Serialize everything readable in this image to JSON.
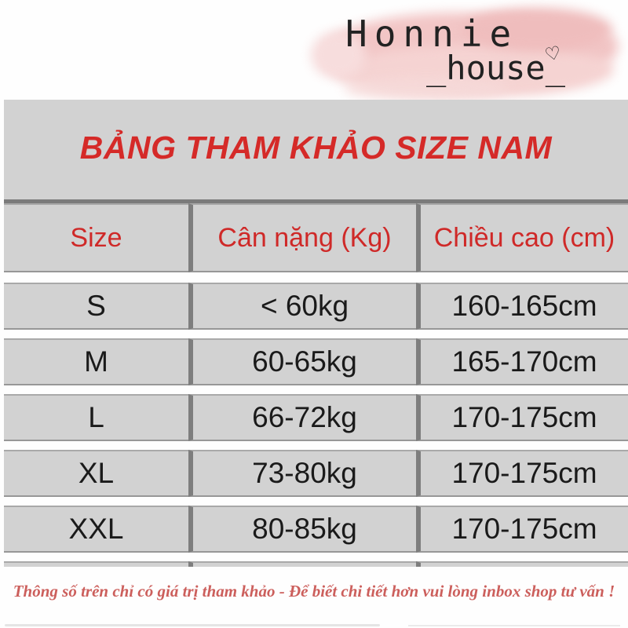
{
  "brand": {
    "name": "Honnie",
    "suffix": "_house_",
    "heart_glyph": "♡"
  },
  "chart_data": {
    "type": "table",
    "title": "BẢNG THAM KHẢO SIZE NAM",
    "columns": [
      "Size",
      "Cân nặng (Kg)",
      "Chiều cao (cm)"
    ],
    "rows": [
      [
        "S",
        "< 60kg",
        "160-165cm"
      ],
      [
        "M",
        "60-65kg",
        "165-170cm"
      ],
      [
        "L",
        "66-72kg",
        "170-175cm"
      ],
      [
        "XL",
        "73-80kg",
        "170-175cm"
      ],
      [
        "XXL",
        "80-85kg",
        "170-175cm"
      ]
    ]
  },
  "footnote": "Thông số trên chỉ có giá trị tham khảo - Để biết chi tiết hơn vui lòng inbox shop tư vấn !",
  "colors": {
    "accent_red": "#d52a28",
    "header_red": "#cf2928",
    "table_gray": "#d2d2d2",
    "grid_dark_gray": "#7e7e7e",
    "text_black": "#1a1a1a",
    "note_red": "#cc5f5c",
    "splash_pink": "#f2c6c6"
  }
}
